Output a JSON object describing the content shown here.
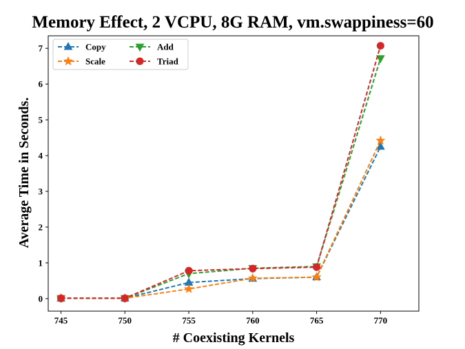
{
  "chart_data": {
    "type": "line",
    "title": "Memory Effect, 2 VCPU, 8G RAM, vm.swappiness=60",
    "xlabel": "# Coexisting Kernels",
    "ylabel": "Average Time in Seconds.",
    "x": [
      745,
      750,
      755,
      760,
      765,
      770
    ],
    "xticks": [
      "745",
      "750",
      "755",
      "760",
      "765",
      "770"
    ],
    "yticks": [
      "0",
      "1",
      "2",
      "3",
      "4",
      "5",
      "6",
      "7"
    ],
    "xlim": [
      744,
      773
    ],
    "ylim": [
      -0.35,
      7.35
    ],
    "grid": false,
    "legend_position": "top-left",
    "series": [
      {
        "name": "Copy",
        "color": "#1f77b4",
        "marker": "triangle-up",
        "values": [
          0.01,
          0.01,
          0.45,
          0.56,
          0.6,
          4.25
        ]
      },
      {
        "name": "Scale",
        "color": "#ff7f0e",
        "marker": "star",
        "values": [
          0.01,
          0.01,
          0.27,
          0.57,
          0.6,
          4.42
        ]
      },
      {
        "name": "Add",
        "color": "#2ca02c",
        "marker": "triangle-down",
        "values": [
          0.01,
          0.01,
          0.7,
          0.85,
          0.9,
          6.72
        ]
      },
      {
        "name": "Triad",
        "color": "#d62728",
        "marker": "circle",
        "values": [
          0.01,
          0.01,
          0.78,
          0.84,
          0.88,
          7.07
        ]
      }
    ]
  }
}
